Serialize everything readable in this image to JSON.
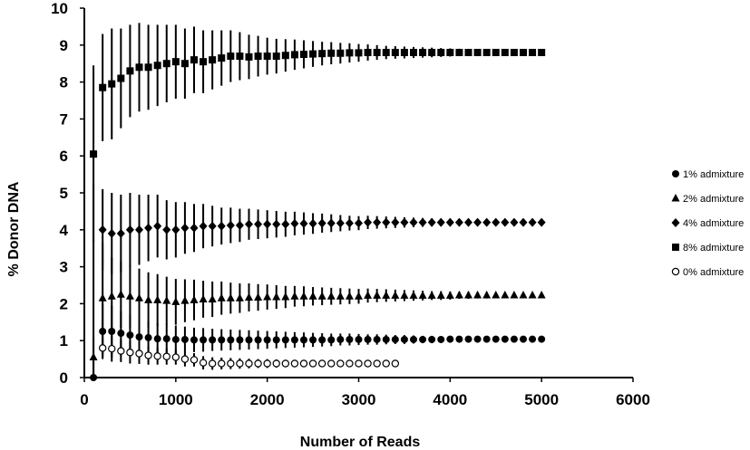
{
  "chart_data": {
    "type": "scatter",
    "xlabel": "Number of Reads",
    "ylabel": "% Donor DNA",
    "xlim": [
      0,
      6000
    ],
    "ylim": [
      0,
      10
    ],
    "xticks": [
      0,
      1000,
      2000,
      3000,
      4000,
      5000,
      6000
    ],
    "yticks": [
      0,
      1,
      2,
      3,
      4,
      5,
      6,
      7,
      8,
      9,
      10
    ],
    "grid": false,
    "legend_position": "right",
    "series": [
      {
        "name": "1% admixture",
        "marker": "circle",
        "x": [
          100,
          200,
          300,
          400,
          500,
          600,
          700,
          800,
          900,
          1000,
          1100,
          1200,
          1300,
          1400,
          1500,
          1600,
          1700,
          1800,
          1900,
          2000,
          2100,
          2200,
          2300,
          2400,
          2500,
          2600,
          2700,
          2800,
          2900,
          3000,
          3100,
          3200,
          3300,
          3400,
          3500,
          3600,
          3700,
          3800,
          3900,
          4000,
          4100,
          4200,
          4300,
          4400,
          4500,
          4600,
          4700,
          4800,
          4900,
          5000
        ],
        "y": [
          0.0,
          1.25,
          1.25,
          1.2,
          1.15,
          1.1,
          1.08,
          1.05,
          1.05,
          1.03,
          1.03,
          1.02,
          1.02,
          1.02,
          1.02,
          1.02,
          1.02,
          1.02,
          1.02,
          1.02,
          1.02,
          1.02,
          1.02,
          1.02,
          1.02,
          1.02,
          1.02,
          1.03,
          1.03,
          1.03,
          1.03,
          1.03,
          1.03,
          1.03,
          1.03,
          1.03,
          1.03,
          1.03,
          1.03,
          1.04,
          1.04,
          1.04,
          1.04,
          1.04,
          1.04,
          1.04,
          1.04,
          1.04,
          1.04,
          1.04
        ],
        "err": [
          1.1,
          0.75,
          0.7,
          0.6,
          0.55,
          0.5,
          0.45,
          0.42,
          0.4,
          0.38,
          0.35,
          0.33,
          0.32,
          0.3,
          0.29,
          0.28,
          0.27,
          0.26,
          0.25,
          0.24,
          0.23,
          0.22,
          0.21,
          0.2,
          0.19,
          0.18,
          0.17,
          0.16,
          0.16,
          0.15,
          0.14,
          0.14,
          0.13,
          0.12,
          0.12,
          0.11,
          0.1,
          0.1,
          0.09,
          0.09,
          0.08,
          0.08,
          0.07,
          0.07,
          0.06,
          0.06,
          0.06,
          0.05,
          0.05,
          0.05
        ]
      },
      {
        "name": "2% admixture",
        "marker": "triangle",
        "x": [
          100,
          200,
          300,
          400,
          500,
          600,
          700,
          800,
          900,
          1000,
          1100,
          1200,
          1300,
          1400,
          1500,
          1600,
          1700,
          1800,
          1900,
          2000,
          2100,
          2200,
          2300,
          2400,
          2500,
          2600,
          2700,
          2800,
          2900,
          3000,
          3100,
          3200,
          3300,
          3400,
          3500,
          3600,
          3700,
          3800,
          3900,
          4000,
          4100,
          4200,
          4300,
          4400,
          4500,
          4600,
          4700,
          4800,
          4900,
          5000
        ],
        "y": [
          0.55,
          2.15,
          2.2,
          2.25,
          2.2,
          2.15,
          2.1,
          2.1,
          2.08,
          2.05,
          2.08,
          2.1,
          2.12,
          2.12,
          2.15,
          2.15,
          2.15,
          2.17,
          2.17,
          2.18,
          2.18,
          2.18,
          2.2,
          2.2,
          2.2,
          2.2,
          2.2,
          2.2,
          2.2,
          2.2,
          2.22,
          2.22,
          2.22,
          2.22,
          2.22,
          2.22,
          2.22,
          2.22,
          2.22,
          2.22,
          2.23,
          2.23,
          2.23,
          2.23,
          2.23,
          2.23,
          2.23,
          2.23,
          2.23,
          2.23
        ],
        "err": [
          4.7,
          1.5,
          1.05,
          0.9,
          0.85,
          0.8,
          0.75,
          0.7,
          0.65,
          0.62,
          0.58,
          0.55,
          0.5,
          0.48,
          0.45,
          0.42,
          0.4,
          0.38,
          0.36,
          0.34,
          0.32,
          0.3,
          0.28,
          0.27,
          0.25,
          0.24,
          0.23,
          0.22,
          0.21,
          0.2,
          0.19,
          0.18,
          0.17,
          0.16,
          0.15,
          0.14,
          0.13,
          0.12,
          0.12,
          0.11,
          0.1,
          0.1,
          0.09,
          0.09,
          0.08,
          0.08,
          0.07,
          0.07,
          0.06,
          0.06
        ]
      },
      {
        "name": "4% admixture",
        "marker": "diamond",
        "x": [
          200,
          300,
          400,
          500,
          600,
          700,
          800,
          900,
          1000,
          1100,
          1200,
          1300,
          1400,
          1500,
          1600,
          1700,
          1800,
          1900,
          2000,
          2100,
          2200,
          2300,
          2400,
          2500,
          2600,
          2700,
          2800,
          2900,
          3000,
          3100,
          3200,
          3300,
          3400,
          3500,
          3600,
          3700,
          3800,
          3900,
          4000,
          4100,
          4200,
          4300,
          4400,
          4500,
          4600,
          4700,
          4800,
          4900,
          5000
        ],
        "y": [
          4.0,
          3.9,
          3.9,
          4.0,
          4.0,
          4.05,
          4.1,
          4.0,
          4.0,
          4.05,
          4.05,
          4.1,
          4.1,
          4.1,
          4.12,
          4.12,
          4.15,
          4.15,
          4.15,
          4.15,
          4.15,
          4.17,
          4.17,
          4.17,
          4.18,
          4.18,
          4.18,
          4.18,
          4.18,
          4.2,
          4.2,
          4.2,
          4.2,
          4.2,
          4.2,
          4.2,
          4.2,
          4.2,
          4.2,
          4.2,
          4.2,
          4.2,
          4.2,
          4.2,
          4.2,
          4.2,
          4.2,
          4.2,
          4.2
        ],
        "err": [
          1.1,
          1.1,
          1.05,
          1.0,
          0.95,
          0.9,
          0.85,
          0.8,
          0.75,
          0.7,
          0.65,
          0.6,
          0.55,
          0.5,
          0.48,
          0.45,
          0.42,
          0.4,
          0.38,
          0.36,
          0.34,
          0.32,
          0.3,
          0.28,
          0.26,
          0.24,
          0.22,
          0.2,
          0.19,
          0.18,
          0.17,
          0.16,
          0.15,
          0.14,
          0.13,
          0.12,
          0.11,
          0.1,
          0.1,
          0.09,
          0.09,
          0.08,
          0.08,
          0.07,
          0.07,
          0.06,
          0.06,
          0.05,
          0.05
        ]
      },
      {
        "name": "8% admixture",
        "marker": "square",
        "x": [
          100,
          200,
          300,
          400,
          500,
          600,
          700,
          800,
          900,
          1000,
          1100,
          1200,
          1300,
          1400,
          1500,
          1600,
          1700,
          1800,
          1900,
          2000,
          2100,
          2200,
          2300,
          2400,
          2500,
          2600,
          2700,
          2800,
          2900,
          3000,
          3100,
          3200,
          3300,
          3400,
          3500,
          3600,
          3700,
          3800,
          3900,
          4000,
          4100,
          4200,
          4300,
          4400,
          4500,
          4600,
          4700,
          4800,
          4900,
          5000
        ],
        "y": [
          6.05,
          7.85,
          7.95,
          8.1,
          8.3,
          8.4,
          8.4,
          8.45,
          8.5,
          8.55,
          8.5,
          8.6,
          8.55,
          8.6,
          8.65,
          8.7,
          8.7,
          8.68,
          8.7,
          8.7,
          8.7,
          8.72,
          8.74,
          8.75,
          8.76,
          8.77,
          8.78,
          8.78,
          8.79,
          8.79,
          8.8,
          8.8,
          8.8,
          8.8,
          8.8,
          8.8,
          8.8,
          8.8,
          8.8,
          8.8,
          8.8,
          8.8,
          8.8,
          8.8,
          8.8,
          8.8,
          8.8,
          8.8,
          8.8,
          8.8
        ],
        "err": [
          2.4,
          1.45,
          1.5,
          1.35,
          1.25,
          1.2,
          1.15,
          1.1,
          1.05,
          1.0,
          0.95,
          0.9,
          0.85,
          0.8,
          0.75,
          0.7,
          0.65,
          0.6,
          0.55,
          0.5,
          0.47,
          0.44,
          0.41,
          0.38,
          0.35,
          0.32,
          0.3,
          0.28,
          0.26,
          0.24,
          0.22,
          0.2,
          0.18,
          0.17,
          0.16,
          0.15,
          0.14,
          0.13,
          0.12,
          0.11,
          0.1,
          0.09,
          0.09,
          0.08,
          0.08,
          0.07,
          0.07,
          0.06,
          0.06,
          0.05
        ]
      },
      {
        "name": "0% admixture",
        "marker": "open-circle",
        "x": [
          200,
          300,
          400,
          500,
          600,
          700,
          800,
          900,
          1000,
          1100,
          1200,
          1300,
          1400,
          1500,
          1600,
          1700,
          1800,
          1900,
          2000,
          2100,
          2200,
          2300,
          2400,
          2500,
          2600,
          2700,
          2800,
          2900,
          3000,
          3100,
          3200,
          3300,
          3400
        ],
        "y": [
          0.8,
          0.78,
          0.72,
          0.68,
          0.65,
          0.6,
          0.58,
          0.57,
          0.55,
          0.5,
          0.48,
          0.4,
          0.38,
          0.38,
          0.38,
          0.38,
          0.38,
          0.38,
          0.38,
          0.38,
          0.38,
          0.38,
          0.38,
          0.38,
          0.38,
          0.38,
          0.38,
          0.38,
          0.38,
          0.38,
          0.38,
          0.38,
          0.38
        ],
        "err": [
          0.25,
          0.35,
          0.3,
          0.3,
          0.28,
          0.25,
          0.23,
          0.22,
          0.2,
          0.2,
          0.18,
          0.18,
          0.17,
          0.16,
          0.15,
          0.14,
          0.13,
          0.12,
          0.12,
          0.11,
          0.1,
          0.1,
          0.09,
          0.09,
          0.08,
          0.08,
          0.07,
          0.07,
          0.06,
          0.06,
          0.05,
          0.05,
          0.05
        ]
      }
    ]
  }
}
